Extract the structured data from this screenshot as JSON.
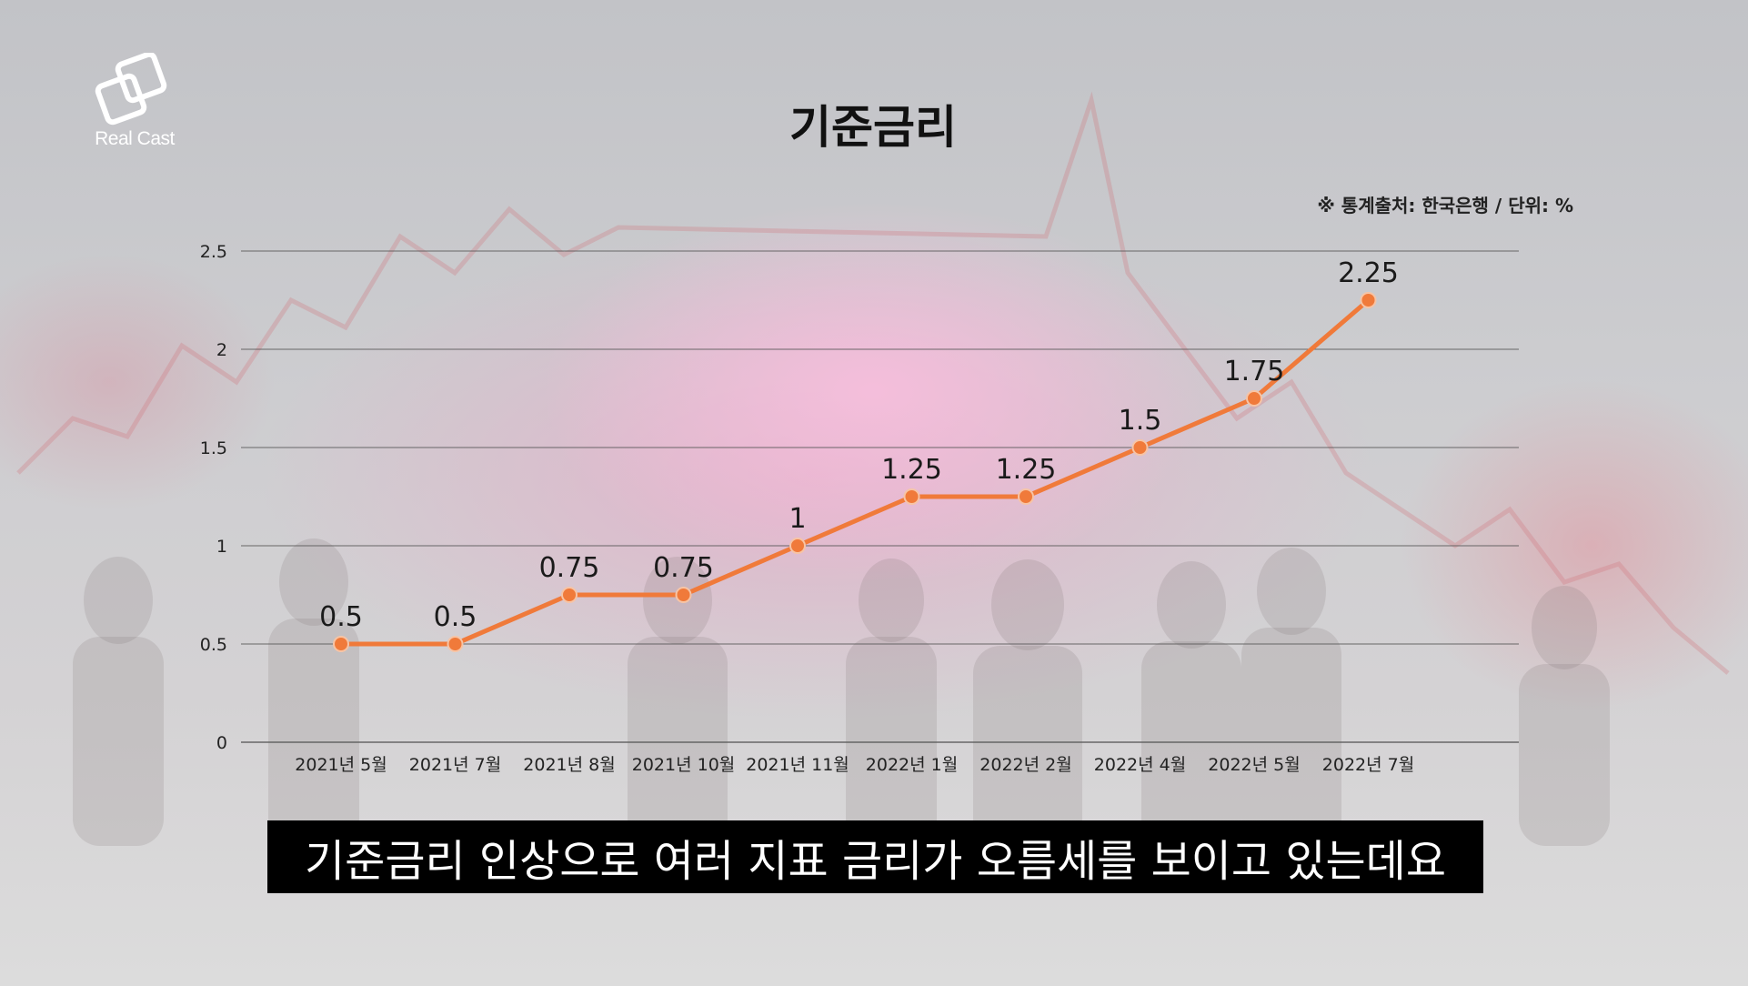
{
  "brand": {
    "logo_text": "Real Cast"
  },
  "title": "기준금리",
  "source_note": "※ 통계출처: 한국은행 / 단위: %",
  "subtitle": "기준금리 인상으로 여러 지표 금리가 오름세를 보이고 있는데요",
  "colors": {
    "line": "#f07a3a",
    "grid": "#555555",
    "subtitle_bg": "#000000"
  },
  "chart_data": {
    "type": "line",
    "title": "기준금리",
    "categories": [
      "2021년 5월",
      "2021년 7월",
      "2021년 8월",
      "2021년 10월",
      "2021년 11월",
      "2022년 1월",
      "2022년 2월",
      "2022년 4월",
      "2022년 5월",
      "2022년 7월"
    ],
    "values": [
      0.5,
      0.5,
      0.75,
      0.75,
      1,
      1.25,
      1.25,
      1.5,
      1.75,
      2.25
    ],
    "value_labels": [
      "0.5",
      "0.5",
      "0.75",
      "0.75",
      "1",
      "1.25",
      "1.25",
      "1.5",
      "1.75",
      "2.25"
    ],
    "y_ticks": [
      "0",
      "0.5",
      "1",
      "1.5",
      "2",
      "2.5"
    ],
    "ylim": [
      0,
      2.5
    ],
    "grid": true,
    "legend": "none"
  }
}
